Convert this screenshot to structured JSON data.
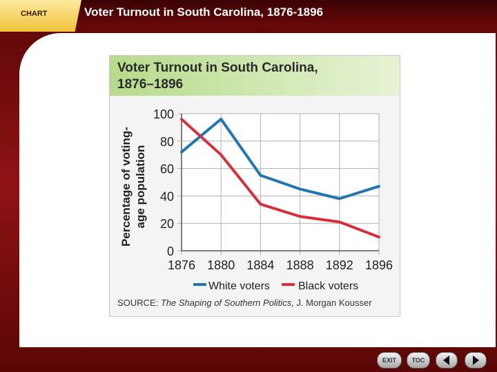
{
  "header": {
    "tab_label": "CHART",
    "slide_title": "Voter Turnout in South Carolina, 1876-1896"
  },
  "figure": {
    "title_line1": "Voter Turnout in South Carolina,",
    "title_line2": "1876–1896",
    "source_label": "SOURCE:",
    "source_text": "The Shaping of Southern Politics,",
    "source_author": "J. Morgan Kousser"
  },
  "chart_data": {
    "type": "line",
    "x": [
      1876,
      1880,
      1884,
      1888,
      1892,
      1896
    ],
    "x_ticks": [
      "1876",
      "1880",
      "1884",
      "1888",
      "1892",
      "1896"
    ],
    "ylabel_line1": "Percentage of voting-",
    "ylabel_line2": "age population",
    "ylim": [
      0,
      100
    ],
    "y_ticks": [
      "0",
      "20",
      "40",
      "60",
      "80",
      "100"
    ],
    "grid": true,
    "legend_position": "bottom",
    "series": [
      {
        "name": "White voters",
        "color": "#1f77b4",
        "values": [
          72,
          96,
          55,
          45,
          38,
          47
        ]
      },
      {
        "name": "Black voters",
        "color": "#d62f3a",
        "values": [
          96,
          70,
          34,
          25,
          21,
          10
        ]
      }
    ]
  },
  "nav": {
    "exit_label": "EXIT",
    "toc_label": "TOC",
    "prev_icon": "left-arrow",
    "next_icon": "right-arrow"
  }
}
